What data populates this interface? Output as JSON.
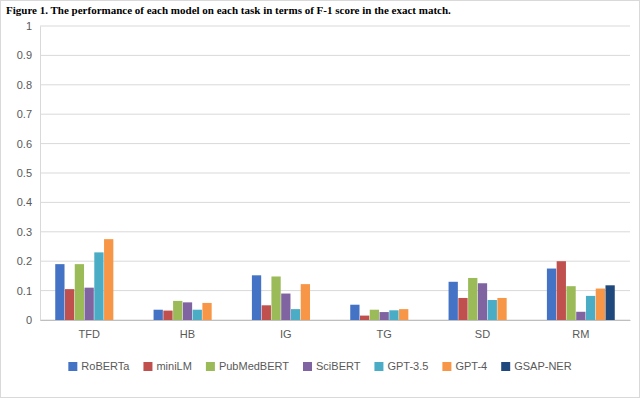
{
  "chart_data": {
    "type": "bar",
    "title": "Figure 1. The performance of each model on each task in terms of F-1 score in the exact match.",
    "categories": [
      "TFD",
      "HB",
      "IG",
      "TG",
      "SD",
      "RM"
    ],
    "series": [
      {
        "name": "RoBERTa",
        "color": "#4472c4",
        "values": [
          0.19,
          0.035,
          0.152,
          0.052,
          0.13,
          0.175
        ]
      },
      {
        "name": "miniLM",
        "color": "#c0504d",
        "values": [
          0.105,
          0.032,
          0.05,
          0.015,
          0.075,
          0.2
        ]
      },
      {
        "name": "PubMedBERT",
        "color": "#9bbb59",
        "values": [
          0.19,
          0.065,
          0.148,
          0.035,
          0.143,
          0.115
        ]
      },
      {
        "name": "SciBERT",
        "color": "#8064a2",
        "values": [
          0.11,
          0.06,
          0.09,
          0.027,
          0.125,
          0.028
        ]
      },
      {
        "name": "GPT-3.5",
        "color": "#4bacc6",
        "values": [
          0.23,
          0.035,
          0.037,
          0.033,
          0.068,
          0.082
        ]
      },
      {
        "name": "GPT-4",
        "color": "#f79646",
        "values": [
          0.275,
          0.058,
          0.122,
          0.037,
          0.075,
          0.107
        ]
      },
      {
        "name": "GSAP-NER",
        "color": "#1f497d",
        "values": [
          null,
          null,
          null,
          null,
          null,
          0.118
        ]
      }
    ],
    "ylim": [
      0,
      1
    ],
    "yticks": [
      0,
      0.1,
      0.2,
      0.3,
      0.4,
      0.5,
      0.6,
      0.7,
      0.8,
      0.9,
      1
    ],
    "grid": true,
    "legend": "bottom"
  }
}
